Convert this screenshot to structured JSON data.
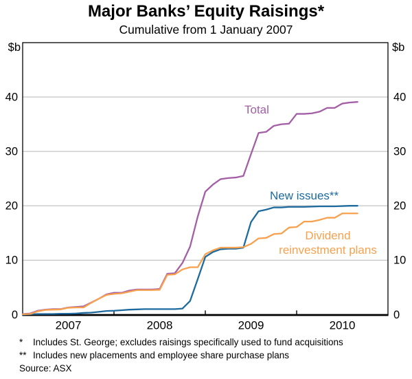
{
  "title": "Major Banks’ Equity Raisings*",
  "subtitle": "Cumulative from 1 January 2007",
  "unit_left": "$b",
  "unit_right": "$b",
  "footnotes": [
    {
      "marker": "*",
      "text": "Includes St. George; excludes raisings specifically used to fund acquisitions"
    },
    {
      "marker": "**",
      "text": "Includes new placements and employee share purchase plans"
    }
  ],
  "source": "Source: ASX",
  "colors": {
    "total": "#a35ea6",
    "new_issues": "#1c6a9e",
    "dividend_reinvestment_plans": "#f7a14f",
    "gridline": "#b4b4b4",
    "axis": "#000000",
    "background": "#ffffff"
  },
  "chart_data": {
    "type": "line",
    "title": "Major Banks’ Equity Raisings*",
    "subtitle": "Cumulative from 1 January 2007",
    "ylabel": "$b",
    "ylim": [
      0,
      50
    ],
    "yticks": [
      0,
      10,
      20,
      30,
      40
    ],
    "xlim_years": [
      2007.0,
      2011.0
    ],
    "xticks_years": [
      2008,
      2009,
      2010
    ],
    "x_year_labels": [
      "2007",
      "2008",
      "2009",
      "2010"
    ],
    "grid": "horizontal",
    "frequency": "monthly",
    "start_month": "2007-01",
    "end_month": "2010-09",
    "n_points": 45,
    "legend_position": "inline-labels",
    "series": [
      {
        "name": "Total",
        "label": "Total",
        "color": "#a35ea6",
        "values": [
          0.1,
          0.2,
          0.7,
          0.9,
          1.0,
          1.0,
          1.3,
          1.4,
          1.5,
          2.2,
          2.9,
          3.7,
          4.0,
          4.0,
          4.4,
          4.6,
          4.6,
          4.6,
          4.7,
          7.5,
          7.6,
          9.5,
          12.5,
          18.0,
          22.6,
          23.9,
          24.9,
          25.1,
          25.2,
          25.5,
          29.5,
          33.4,
          33.6,
          34.7,
          35.0,
          35.1,
          36.9,
          36.9,
          37.0,
          37.3,
          38.0,
          38.0,
          38.8,
          39.0,
          39.1
        ]
      },
      {
        "name": "New issues**",
        "label": "New issues**",
        "color": "#1c6a9e",
        "values": [
          0.0,
          0.05,
          0.1,
          0.1,
          0.1,
          0.15,
          0.15,
          0.2,
          0.3,
          0.35,
          0.5,
          0.65,
          0.7,
          0.8,
          0.9,
          0.95,
          1.0,
          1.0,
          1.0,
          1.0,
          1.0,
          1.1,
          2.5,
          6.5,
          10.6,
          11.5,
          12.0,
          12.1,
          12.1,
          12.3,
          17.0,
          19.0,
          19.3,
          19.7,
          19.7,
          19.8,
          19.8,
          19.8,
          19.85,
          19.9,
          19.9,
          19.9,
          19.95,
          20.0,
          20.0
        ]
      },
      {
        "name": "Dividend reinvestment plans",
        "label_line1": "Dividend",
        "label_line2": "reinvestment plans",
        "color": "#f7a14f",
        "values": [
          0.05,
          0.1,
          0.6,
          0.85,
          0.9,
          0.95,
          1.25,
          1.3,
          1.3,
          2.15,
          2.9,
          3.6,
          3.8,
          3.9,
          4.2,
          4.5,
          4.5,
          4.5,
          4.55,
          7.3,
          7.4,
          8.3,
          8.7,
          8.7,
          11.1,
          11.8,
          12.3,
          12.3,
          12.3,
          12.4,
          13.0,
          14.0,
          14.1,
          14.8,
          14.9,
          16.0,
          16.1,
          17.1,
          17.1,
          17.4,
          17.8,
          17.8,
          18.6,
          18.6,
          18.6
        ]
      }
    ]
  }
}
